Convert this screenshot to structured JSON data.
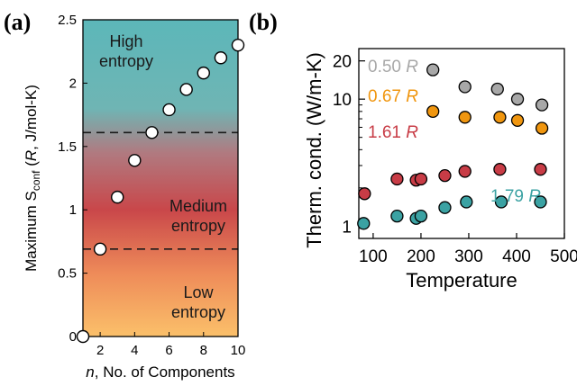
{
  "chart_data": [
    {
      "panel_label": "(a)",
      "type": "scatter",
      "xlabel_italic": "n",
      "xlabel_rest": ", No. of Components",
      "ylabel_parts": [
        "Maximum S",
        "conf",
        " (",
        "R",
        ", J/mol-K)"
      ],
      "xlim": [
        1,
        10
      ],
      "ylim": [
        0,
        2.5
      ],
      "xticks": [
        2,
        4,
        6,
        8,
        10
      ],
      "yticks": [
        0,
        0.5,
        1,
        1.5,
        2,
        2.5
      ],
      "ytick_labels": [
        "0",
        "0.5",
        "1",
        "1.5",
        "2",
        "2.5"
      ],
      "x": [
        1,
        2,
        3,
        4,
        5,
        6,
        7,
        8,
        9,
        10
      ],
      "y": [
        0,
        0.69,
        1.1,
        1.39,
        1.61,
        1.79,
        1.95,
        2.08,
        2.2,
        2.3
      ],
      "dashed_lines": [
        0.69,
        1.61
      ],
      "regions": [
        {
          "lines": [
            "High",
            "entropy"
          ]
        },
        {
          "lines": [
            "Medium",
            "entropy"
          ]
        },
        {
          "lines": [
            "Low",
            "entropy"
          ]
        }
      ],
      "background_colors": {
        "top": "#5fb8ba",
        "middle": "#c9474a",
        "bottom": "#f9bd6a"
      },
      "marker_color": "#ffffff"
    },
    {
      "panel_label": "(b)",
      "type": "scatter",
      "xlabel": "Temperature",
      "ylabel": "Therm. cond. (W/m-K)",
      "yscale": "log",
      "xlim": [
        70,
        500
      ],
      "ylim": [
        0.8,
        25
      ],
      "xticks": [
        100,
        200,
        300,
        400,
        500
      ],
      "yticks": [
        1,
        10,
        20
      ],
      "minor_yticks": [
        2,
        3,
        4,
        5,
        6,
        7,
        8,
        9
      ],
      "series": [
        {
          "label_value": "0.50",
          "label_unit": "R",
          "color": "#a8a8a8",
          "x": [
            225
          ],
          "y": [
            17
          ]
        },
        {
          "label_value": "0.67",
          "label_unit": "R",
          "color": "#f0960f",
          "x": [
            225,
            292,
            365,
            402,
            453
          ],
          "y": [
            8.0,
            7.2,
            7.2,
            6.8,
            5.9
          ]
        },
        {
          "label_value": "1.61",
          "label_unit": "R",
          "color": "#c83c46",
          "x": [
            82,
            150,
            190,
            200,
            250,
            292,
            365,
            450
          ],
          "y": [
            1.8,
            2.35,
            2.3,
            2.35,
            2.5,
            2.7,
            2.8,
            2.8
          ]
        },
        {
          "label_value": "1.79",
          "label_unit": "R",
          "color": "#3ba2a3",
          "x": [
            80,
            150,
            190,
            200,
            250,
            295,
            368,
            450
          ],
          "y": [
            1.05,
            1.2,
            1.15,
            1.2,
            1.4,
            1.55,
            1.55,
            1.55
          ]
        }
      ],
      "extra_points": [
        {
          "color": "#a8a8a8",
          "x": 292,
          "y": 12.5
        },
        {
          "color": "#a8a8a8",
          "x": 360,
          "y": 12
        },
        {
          "color": "#a8a8a8",
          "x": 402,
          "y": 10
        },
        {
          "color": "#a8a8a8",
          "x": 453,
          "y": 9
        }
      ]
    }
  ]
}
